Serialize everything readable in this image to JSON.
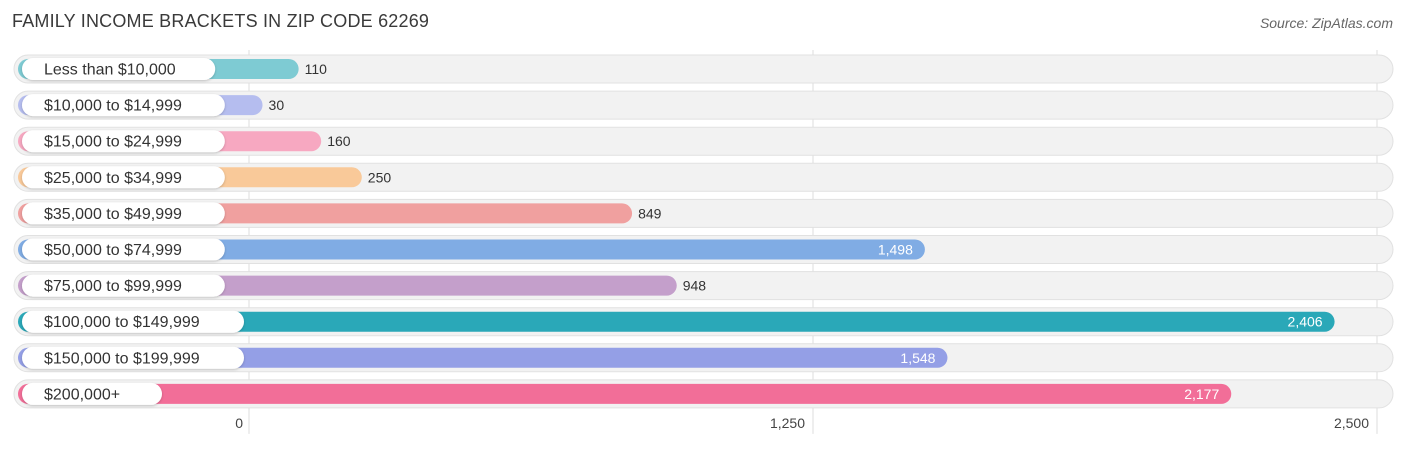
{
  "title": "FAMILY INCOME BRACKETS IN ZIP CODE 62269",
  "source": "Source: ZipAtlas.com",
  "chart_data": {
    "type": "bar",
    "orientation": "horizontal",
    "title": "FAMILY INCOME BRACKETS IN ZIP CODE 62269",
    "categories": [
      "Less than $10,000",
      "$10,000 to $14,999",
      "$15,000 to $24,999",
      "$25,000 to $34,999",
      "$35,000 to $49,999",
      "$50,000 to $74,999",
      "$75,000 to $99,999",
      "$100,000 to $149,999",
      "$150,000 to $199,999",
      "$200,000+"
    ],
    "values": [
      110,
      30,
      160,
      250,
      849,
      1498,
      948,
      2406,
      1548,
      2177
    ],
    "value_labels": [
      "110",
      "30",
      "160",
      "250",
      "849",
      "1,498",
      "948",
      "2,406",
      "1,548",
      "2,177"
    ],
    "colors": [
      "#7ecbd3",
      "#b5bdef",
      "#f7a8c1",
      "#f9c999",
      "#f0a09f",
      "#80ace4",
      "#c49fcb",
      "#2aa8b8",
      "#949fe6",
      "#f26e98"
    ],
    "xlim": [
      0,
      2500
    ],
    "xticks": [
      0,
      1250,
      2500
    ],
    "xtick_labels": [
      "0",
      "1,250",
      "2,500"
    ],
    "grid": true,
    "xlabel": "",
    "ylabel": ""
  }
}
